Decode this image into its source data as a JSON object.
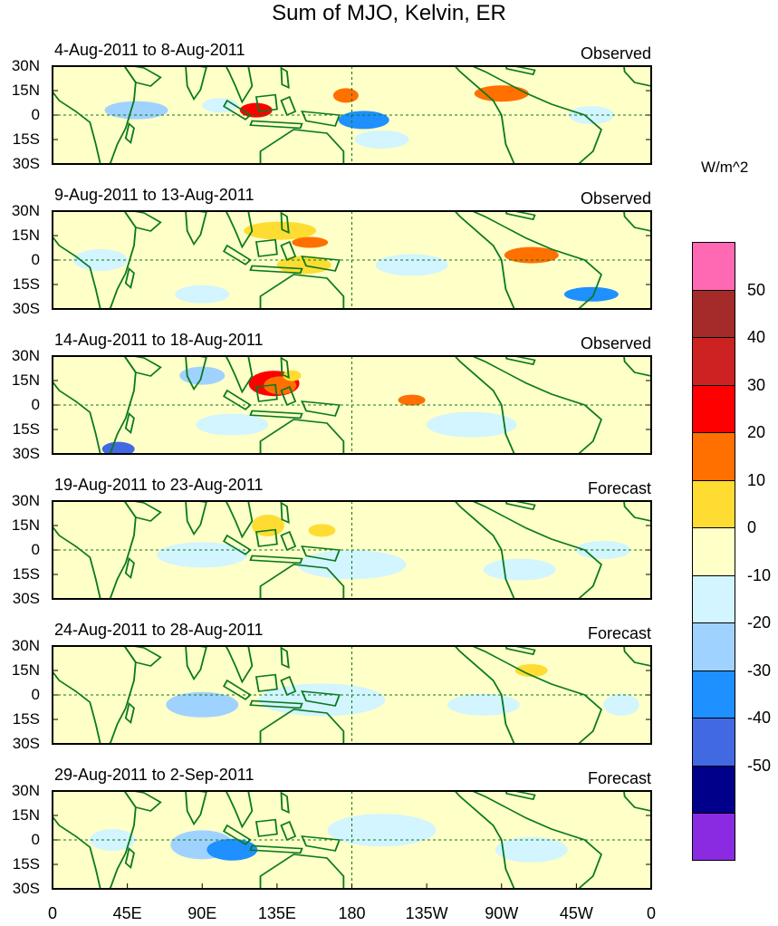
{
  "title": "Sum of MJO, Kelvin, ER",
  "units": "W/m^2",
  "y_labels": [
    "30N",
    "15N",
    "0",
    "15S",
    "30S"
  ],
  "x_labels": [
    "0",
    "45E",
    "90E",
    "135E",
    "180",
    "135W",
    "90W",
    "45W",
    "0"
  ],
  "panels": [
    {
      "period": "4-Aug-2011 to 8-Aug-2011",
      "type": "Observed"
    },
    {
      "period": "9-Aug-2011 to 13-Aug-2011",
      "type": "Observed"
    },
    {
      "period": "14-Aug-2011 to 18-Aug-2011",
      "type": "Observed"
    },
    {
      "period": "19-Aug-2011 to 23-Aug-2011",
      "type": "Forecast"
    },
    {
      "period": "24-Aug-2011 to 28-Aug-2011",
      "type": "Forecast"
    },
    {
      "period": "29-Aug-2011 to 2-Sep-2011",
      "type": "Forecast"
    }
  ],
  "colorbar": {
    "labels": [
      "50",
      "40",
      "30",
      "20",
      "10",
      "0",
      "-10",
      "-20",
      "-30",
      "-40",
      "-50"
    ],
    "colors": [
      "#ff69b4",
      "#a52a2a",
      "#cc2222",
      "#ff0000",
      "#ff7000",
      "#ffdc32",
      "#ffffc8",
      "#d2f5ff",
      "#a0d2ff",
      "#1e90ff",
      "#4169e1",
      "#00008b",
      "#8a2be2"
    ]
  },
  "colors": {
    "land": "#0a7a1f",
    "neutral": "#ffffc8"
  }
}
